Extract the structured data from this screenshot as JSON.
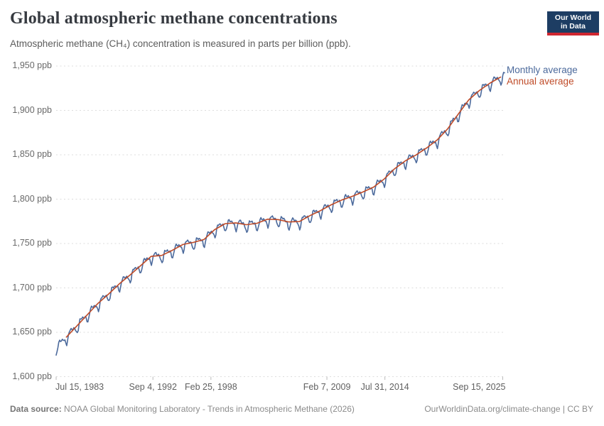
{
  "header": {
    "title": "Global atmospheric methane concentrations",
    "subtitle": "Atmospheric methane (CH₄) concentration is measured in parts per billion (ppb).",
    "logo": {
      "line1": "Our World",
      "line2": "in Data",
      "bg_color": "#1d3d63",
      "accent_color": "#cf2630"
    }
  },
  "footer": {
    "source_label": "Data source:",
    "source_text": "NOAA Global Monitoring Laboratory - Trends in Atmospheric Methane (2026)",
    "link_text": "OurWorldinData.org/climate-change | CC BY"
  },
  "chart_data": {
    "type": "line",
    "title": "Global atmospheric methane concentrations",
    "ylabel": "ppb",
    "ylim": [
      1600,
      1950
    ],
    "grid": "dashed",
    "legend_position": "right-end",
    "yticks": [
      {
        "value": 1600,
        "label": "1,600 ppb"
      },
      {
        "value": 1650,
        "label": "1,650 ppb"
      },
      {
        "value": 1700,
        "label": "1,700 ppb"
      },
      {
        "value": 1750,
        "label": "1,750 ppb"
      },
      {
        "value": 1800,
        "label": "1,800 ppb"
      },
      {
        "value": 1850,
        "label": "1,850 ppb"
      },
      {
        "value": 1900,
        "label": "1,900 ppb"
      },
      {
        "value": 1950,
        "label": "1,950 ppb"
      }
    ],
    "xticks": [
      {
        "t": 1983.537,
        "label": "Jul 15, 1983",
        "align": "start"
      },
      {
        "t": 1992.675,
        "label": "Sep 4, 1992",
        "align": "middle"
      },
      {
        "t": 1998.151,
        "label": "Feb 25, 1998",
        "align": "middle"
      },
      {
        "t": 2009.103,
        "label": "Feb 7, 2009",
        "align": "middle"
      },
      {
        "t": 2014.578,
        "label": "Jul 31, 2014",
        "align": "middle"
      },
      {
        "t": 2025.704,
        "label": "Sep 15, 2025",
        "align": "end"
      }
    ],
    "time_range": [
      1983.537,
      2025.917
    ],
    "series": [
      {
        "name": "Monthly average",
        "color": "#4c6a9c",
        "derived_from": "annual_values_plus_seasonal_cycle",
        "seasonal_pattern_ppb": [
          2.0,
          1.2,
          0.6,
          -0.2,
          -2.5,
          -6.5,
          -9.0,
          -6.0,
          -0.5,
          3.0,
          3.5,
          2.8
        ],
        "wiggle_amplitude_ppb": 1.2,
        "start_month": "Jul 1983",
        "end_month": "Nov 2025",
        "start_value_ppb": 1626,
        "end_value_ppb": 1940
      },
      {
        "name": "Annual average",
        "color": "#bf4b28",
        "years": [
          1984,
          1985,
          1986,
          1987,
          1988,
          1989,
          1990,
          1991,
          1992,
          1993,
          1994,
          1995,
          1996,
          1997,
          1998,
          1999,
          2000,
          2001,
          2002,
          2003,
          2004,
          2005,
          2006,
          2007,
          2008,
          2009,
          2010,
          2011,
          2012,
          2013,
          2014,
          2015,
          2016,
          2017,
          2018,
          2019,
          2020,
          2021,
          2022,
          2023,
          2024,
          2025
        ],
        "values": [
          1644.6,
          1657.3,
          1670.1,
          1682.7,
          1693.2,
          1704.6,
          1714.4,
          1724.9,
          1735.5,
          1736.6,
          1742.3,
          1748.9,
          1751.3,
          1754.6,
          1765.6,
          1772.4,
          1773.3,
          1771.2,
          1772.8,
          1777.4,
          1777.0,
          1774.3,
          1774.7,
          1781.4,
          1787.1,
          1793.6,
          1799.0,
          1803.2,
          1808.1,
          1813.5,
          1822.6,
          1834.3,
          1843.1,
          1849.7,
          1857.5,
          1866.6,
          1879.1,
          1895.7,
          1911.9,
          1922.4,
          1930.8,
          1937.5
        ]
      }
    ]
  }
}
